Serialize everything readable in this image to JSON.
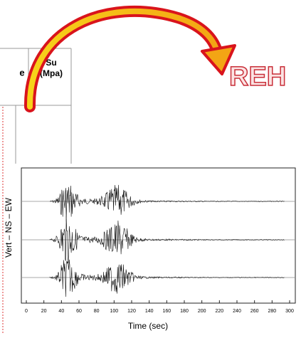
{
  "table": {
    "header": [
      "e",
      [
        "Su",
        "(Mpa)"
      ]
    ]
  },
  "heading_fragment": "REH",
  "chart_data": {
    "type": "seismogram",
    "xlabel": "Time (sec)",
    "ylabel": "Vert – NS – EW",
    "xlim": [
      0,
      300
    ],
    "xticks": [
      0,
      20,
      40,
      60,
      80,
      100,
      120,
      140,
      160,
      180,
      200,
      220,
      240,
      260,
      280,
      300
    ]
  }
}
